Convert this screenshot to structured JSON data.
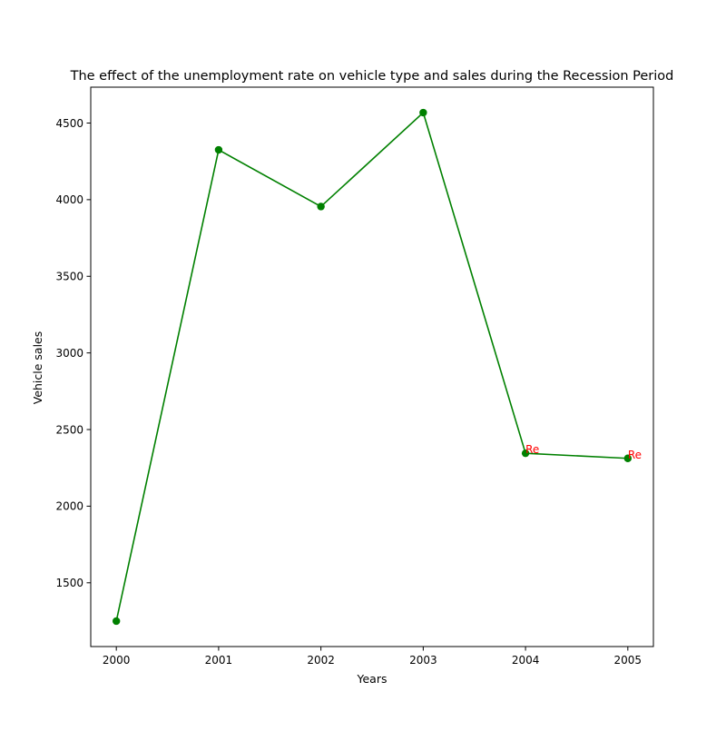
{
  "chart_data": {
    "type": "line",
    "title": "The effect of the unemployment rate on vehicle type and sales during the Recession Period",
    "xlabel": "Years",
    "ylabel": "Vehicle sales",
    "x": [
      2000,
      2001,
      2002,
      2003,
      2004,
      2005
    ],
    "series": [
      {
        "values": [
          1250,
          4325,
          3955,
          4568,
          2345,
          2312
        ],
        "color": "#008000",
        "marker": "circle"
      }
    ],
    "annotations": [
      {
        "x": 2004,
        "y": 2345,
        "text": "Re",
        "color": "#ff0000"
      },
      {
        "x": 2005,
        "y": 2312,
        "text": "Re",
        "color": "#ff0000"
      }
    ],
    "xlim": [
      1999.75,
      2005.25
    ],
    "ylim": [
      1084,
      4734
    ],
    "xticks": [
      2000,
      2001,
      2002,
      2003,
      2004,
      2005
    ],
    "yticks": [
      1500,
      2000,
      2500,
      3000,
      3500,
      4000,
      4500
    ],
    "grid": false,
    "legend": "none"
  }
}
